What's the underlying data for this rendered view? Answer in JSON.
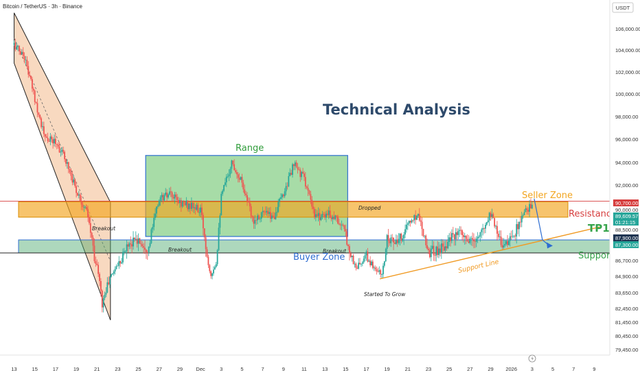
{
  "header": {
    "symbol": "Bitcoin / TetherUS · 3h · Binance",
    "currency": "USDT"
  },
  "colors": {
    "up": "#26a69a",
    "down": "#ef5350",
    "range_fill": "#5fbf5f",
    "range_border": "#2e6dd1",
    "seller_zone": "#f2a51f",
    "buyer_zone": "#4aa96c",
    "support_line": "#f09a23",
    "resistance_red": "#d63d3d",
    "title": "#2e4a6b"
  },
  "annotations": {
    "title": "Technical Analysis",
    "range": "Range",
    "seller_zone": "Seller Zone",
    "buyer_zone": "Buyer Zone",
    "resistance": "Resistance",
    "support": "Support",
    "tp1": "TP1",
    "support_line": "Support Line",
    "breakout_1": "Breakout",
    "breakout_2": "Breakout",
    "breakout_3": "Breakout",
    "dropped": "Dropped",
    "started_to_grow": "Started To Grow"
  },
  "chart_data": {
    "type": "candlestick",
    "title": "Technical Analysis",
    "xlabel": "",
    "ylabel": "",
    "ylim": [
      78500,
      107500
    ],
    "y_ticks": [
      "106,000.00",
      "104,000.00",
      "102,000.00",
      "100,000.00",
      "98,000.00",
      "96,000.00",
      "94,000.00",
      "92,000.00",
      "90,000.00",
      "88,500.00",
      "86,700.00",
      "84,900.00",
      "83,650.00",
      "82,450.00",
      "81,450.00",
      "80,450.00",
      "79,450.00"
    ],
    "y_tick_values": [
      106000,
      104000,
      102000,
      100000,
      98000,
      96000,
      94000,
      92000,
      90000,
      88500,
      86700,
      84900,
      83650,
      82450,
      81450,
      80450,
      79450
    ],
    "x_ticks": [
      "13",
      "15",
      "17",
      "19",
      "21",
      "23",
      "25",
      "27",
      "29",
      "Dec",
      "3",
      "5",
      "7",
      "9",
      "11",
      "13",
      "15",
      "17",
      "19",
      "21",
      "23",
      "25",
      "27",
      "29",
      "2026",
      "3",
      "5",
      "7",
      "9"
    ],
    "x_tick_values": [
      0,
      2,
      4,
      6,
      8,
      10,
      12,
      14,
      16,
      18,
      20,
      22,
      24,
      26,
      28,
      30,
      32,
      34,
      36,
      38,
      40,
      42,
      44,
      46,
      48,
      50,
      52,
      54,
      56
    ],
    "price_labels": [
      {
        "text": "90,700.00",
        "value": 90700,
        "color": "#d63d3d"
      },
      {
        "text": "89,609.57",
        "value": 89609.57,
        "color": "#26a69a"
      },
      {
        "text": "01:21:15",
        "value": 89300,
        "color": "#26a69a"
      },
      {
        "text": "87,900.00",
        "value": 87900,
        "color": "#1f3552"
      },
      {
        "text": "87,300.00",
        "value": 87300,
        "color": "#26a69a"
      }
    ],
    "levels": {
      "resistance": 90700,
      "seller_zone": [
        89800,
        90700
      ],
      "buyer_zone": [
        87300,
        87900
      ]
    },
    "range_box": {
      "x": [
        12.7,
        32.2
      ],
      "y": [
        88100,
        94600
      ]
    },
    "path": [
      [
        0,
        104500
      ],
      [
        1,
        103400
      ],
      [
        2,
        99600
      ],
      [
        3,
        96000
      ],
      [
        4,
        95800
      ],
      [
        5,
        94200
      ],
      [
        6,
        91600
      ],
      [
        7,
        89800
      ],
      [
        8,
        86000
      ],
      [
        8.5,
        82800
      ],
      [
        9,
        84200
      ],
      [
        10,
        86300
      ],
      [
        11,
        87700
      ],
      [
        12,
        87900
      ],
      [
        13,
        87400
      ],
      [
        14,
        90900
      ],
      [
        15,
        91200
      ],
      [
        16,
        90600
      ],
      [
        17,
        90300
      ],
      [
        18,
        89900
      ],
      [
        19,
        85200
      ],
      [
        19.5,
        86500
      ],
      [
        20,
        91000
      ],
      [
        21,
        94000
      ],
      [
        22,
        92300
      ],
      [
        23,
        89200
      ],
      [
        24,
        89800
      ],
      [
        25,
        89400
      ],
      [
        26,
        91300
      ],
      [
        27,
        93800
      ],
      [
        28,
        92600
      ],
      [
        29,
        89400
      ],
      [
        30,
        89700
      ],
      [
        31,
        89500
      ],
      [
        32,
        88200
      ],
      [
        33,
        85900
      ],
      [
        34,
        86900
      ],
      [
        35,
        85600
      ],
      [
        35.5,
        85100
      ],
      [
        36,
        88200
      ],
      [
        37,
        87600
      ],
      [
        38,
        88900
      ],
      [
        39,
        89700
      ],
      [
        40,
        87200
      ],
      [
        41,
        87300
      ],
      [
        42,
        87900
      ],
      [
        43,
        88200
      ],
      [
        44,
        87700
      ],
      [
        45,
        88100
      ],
      [
        46,
        89800
      ],
      [
        47,
        87700
      ],
      [
        48,
        87900
      ],
      [
        49,
        89300
      ],
      [
        50,
        90600
      ]
    ],
    "projection": [
      [
        50.2,
        90900
      ],
      [
        51,
        87900
      ],
      [
        51.6,
        87600
      ]
    ],
    "support_trend": {
      "from": [
        35.3,
        84700
      ],
      "to": [
        56.5,
        88700
      ]
    },
    "channel": {
      "upper": [
        [
          0,
          107500
        ],
        [
          9.3,
          90600
        ]
      ],
      "lower": [
        [
          0,
          102800
        ],
        [
          9.3,
          81600
        ]
      ]
    }
  }
}
